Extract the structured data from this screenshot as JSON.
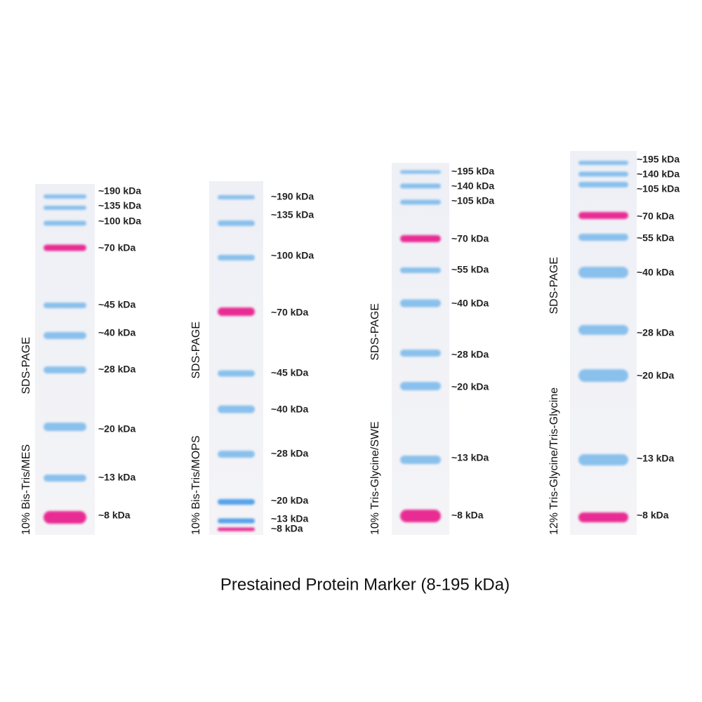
{
  "title": "Prestained Protein Marker (8-195 kDa)",
  "gels": [
    {
      "label": "10% Bis-Tris/MES",
      "method": "SDS-PAGE",
      "bands": [
        "~190 kDa",
        "~135 kDa",
        "~100 kDa",
        "~70 kDa",
        "~45 kDa",
        "~40 kDa",
        "~28 kDa",
        "~20 kDa",
        "~13 kDa",
        "~8 kDa"
      ]
    },
    {
      "label": "10% Bis-Tris/MOPS",
      "method": "SDS-PAGE",
      "bands": [
        "~190 kDa",
        "~135 kDa",
        "~100 kDa",
        "~70 kDa",
        "~45 kDa",
        "~40 kDa",
        "~28 kDa",
        "~20 kDa",
        "~13 kDa",
        "~8 kDa"
      ]
    },
    {
      "label": "10% Tris-Glycine/SWE",
      "method": "SDS-PAGE",
      "bands": [
        "~195 kDa",
        "~140 kDa",
        "~105 kDa",
        "~70 kDa",
        "~55 kDa",
        "~40 kDa",
        "~28 kDa",
        "~20 kDa",
        "~13 kDa",
        "~8 kDa"
      ]
    },
    {
      "label": "12% Tris-Glycine/Tris-Glycine",
      "method": "SDS-PAGE",
      "bands": [
        "~195 kDa",
        "~140 kDa",
        "~105 kDa",
        "~70 kDa",
        "~55 kDa",
        "~40 kDa",
        "~28 kDa",
        "~20 kDa",
        "~13 kDa",
        "~8 kDa"
      ]
    }
  ]
}
